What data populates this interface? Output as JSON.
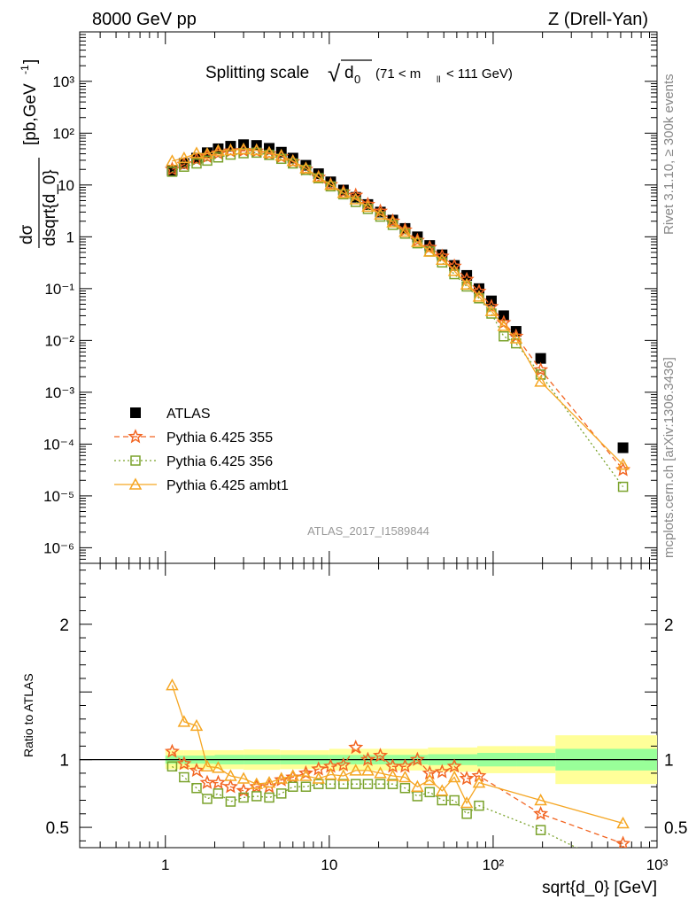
{
  "header": {
    "left_title": "8000 GeV pp",
    "right_title": "Z (Drell-Yan)"
  },
  "plot": {
    "title_main": "Splitting scale",
    "title_sqrt_symbol": "√",
    "title_var": "d",
    "title_var_sub": "0",
    "title_range": "(71 < m",
    "title_range_sub": "ll",
    "title_range_end": "< 111 GeV)",
    "analysis_id": "ATLAS_2017_I1589844",
    "side_label_top": "Rivet 3.1.10, ≥ 300k events",
    "side_label_bottom": "mcplots.cern.ch [arXiv:1306.3436]",
    "ylabel_main_num": "dσ",
    "ylabel_main_den": "dsqrt{d_0}",
    "ylabel_main_units": "[pb,GeV",
    "ylabel_main_units_sup": "-1",
    "ylabel_main_units_end": "]",
    "ylabel_ratio": "Ratio to ATLAS",
    "xlabel": "sqrt{d_0} [GeV]"
  },
  "colors": {
    "data": "#000000",
    "py355": "#f26522",
    "py356": "#7aa22b",
    "ambt1": "#f5a623",
    "band_yellow": "#ffff99",
    "band_green": "#99ff99"
  },
  "chart_data": [
    {
      "type": "scatter",
      "panel": "main",
      "xscale": "log",
      "yscale": "log",
      "xlim": [
        0.3,
        1000
      ],
      "ylim": [
        5e-07,
        9000
      ],
      "x_ticks": [
        "1",
        "10",
        "10²",
        "10³"
      ],
      "y_ticks": [
        "10⁻⁶",
        "10⁻⁵",
        "10⁻⁴",
        "10⁻³",
        "10⁻²",
        "10⁻¹",
        "1",
        "10",
        "10²",
        "10³"
      ],
      "legend": [
        "ATLAS",
        "Pythia 6.425 355",
        "Pythia 6.425 356",
        "Pythia 6.425 ambt1"
      ],
      "legend_position": "bottom-left",
      "x": [
        1.1,
        1.3,
        1.55,
        1.8,
        2.1,
        2.5,
        3.0,
        3.6,
        4.3,
        5.1,
        6.0,
        7.2,
        8.6,
        10.2,
        12.2,
        14.5,
        17.2,
        20.5,
        24.4,
        29.0,
        34.5,
        41.0,
        48.8,
        58.0,
        69.0,
        82.0,
        97.6,
        116.0,
        138.0,
        195.0,
        620.0
      ],
      "series": [
        {
          "name": "ATLAS",
          "values": [
            19,
            26,
            33,
            42,
            50,
            56,
            60,
            58,
            51,
            43,
            33,
            24,
            16.5,
            11.5,
            8.0,
            5.8,
            4.2,
            3.0,
            2.1,
            1.45,
            1.0,
            0.68,
            0.45,
            0.28,
            0.18,
            0.1,
            0.058,
            0.03,
            0.015,
            0.0045,
            8.5e-05
          ]
        },
        {
          "name": "Pythia 6.425 355",
          "values": [
            20,
            25,
            31,
            35,
            41,
            45,
            46,
            45,
            40,
            35,
            28,
            20,
            14,
            10.1,
            7.3,
            6.3,
            4.2,
            3.1,
            2.0,
            1.35,
            0.85,
            0.62,
            0.42,
            0.27,
            0.15,
            0.088,
            0.045,
            0.022,
            0.012,
            0.0027,
            3.2e-05
          ]
        },
        {
          "name": "Pythia 6.425 356",
          "values": [
            18,
            22.5,
            26,
            29.5,
            34,
            38.5,
            41,
            42,
            38,
            32,
            26,
            19.5,
            13.5,
            9.4,
            6.6,
            4.7,
            3.45,
            2.45,
            1.7,
            1.15,
            0.75,
            0.52,
            0.32,
            0.19,
            0.11,
            0.065,
            0.033,
            0.012,
            0.0088,
            0.0022,
            1.5e-05
          ]
        },
        {
          "name": "Pythia 6.425 ambt1",
          "values": [
            29,
            33,
            41,
            40,
            46,
            47,
            49,
            47,
            42,
            37,
            29,
            21,
            14.2,
            10.1,
            7.0,
            5.3,
            3.8,
            2.7,
            1.9,
            1.25,
            0.8,
            0.52,
            0.36,
            0.22,
            0.12,
            0.07,
            0.037,
            0.019,
            0.011,
            0.0016,
            4e-05
          ]
        }
      ]
    },
    {
      "type": "line",
      "panel": "ratio",
      "xscale": "log",
      "xlim": [
        0.3,
        1000
      ],
      "ylim": [
        0.35,
        2.45
      ],
      "y_ticks": [
        "0.5",
        "1",
        "2"
      ],
      "reference_line": 1,
      "x": [
        1.1,
        1.3,
        1.55,
        1.8,
        2.1,
        2.5,
        3.0,
        3.6,
        4.3,
        5.1,
        6.0,
        7.2,
        8.6,
        10.2,
        12.2,
        14.5,
        17.2,
        20.5,
        24.4,
        29.0,
        34.5,
        41.0,
        48.8,
        58.0,
        69.0,
        82.0,
        195.0,
        620.0
      ],
      "series": [
        {
          "name": "Pythia 6.425 355",
          "values": [
            1.06,
            0.97,
            0.92,
            0.83,
            0.83,
            0.8,
            0.77,
            0.8,
            0.8,
            0.85,
            0.87,
            0.9,
            0.93,
            0.95,
            0.96,
            1.09,
            1.0,
            1.03,
            0.95,
            0.95,
            1.0,
            0.9,
            0.91,
            0.95,
            0.86,
            0.88,
            0.6,
            0.38
          ]
        },
        {
          "name": "Pythia 6.425 356",
          "values": [
            0.95,
            0.87,
            0.79,
            0.71,
            0.75,
            0.69,
            0.72,
            0.73,
            0.72,
            0.75,
            0.8,
            0.8,
            0.82,
            0.82,
            0.82,
            0.82,
            0.82,
            0.82,
            0.82,
            0.79,
            0.73,
            0.76,
            0.7,
            0.7,
            0.6,
            0.66,
            0.48,
            0.18
          ]
        },
        {
          "name": "Pythia 6.425 ambt1",
          "values": [
            1.55,
            1.28,
            1.25,
            0.95,
            0.94,
            0.88,
            0.86,
            0.82,
            0.83,
            0.86,
            0.88,
            0.88,
            0.86,
            0.89,
            0.88,
            0.92,
            0.92,
            0.9,
            0.88,
            0.87,
            0.8,
            0.85,
            0.77,
            0.87,
            0.68,
            0.83,
            0.7,
            0.53
          ]
        }
      ],
      "band": {
        "x_edges": [
          1.0,
          1.3,
          2.0,
          3.0,
          5.0,
          10.0,
          20.0,
          40.0,
          80.0,
          140.0,
          240.0,
          1000.0
        ],
        "yellow_half": [
          0.07,
          0.07,
          0.07,
          0.075,
          0.07,
          0.08,
          0.08,
          0.09,
          0.1,
          0.1,
          0.18,
          0.18
        ],
        "green_half": [
          0.03,
          0.03,
          0.035,
          0.035,
          0.035,
          0.035,
          0.035,
          0.04,
          0.05,
          0.05,
          0.08,
          0.08
        ]
      }
    }
  ]
}
